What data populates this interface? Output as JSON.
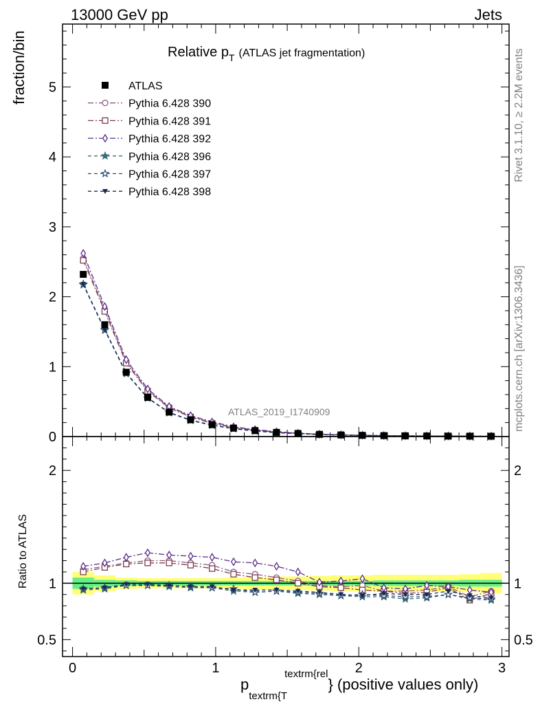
{
  "header": {
    "left": "13000 GeV pp",
    "right": "Jets"
  },
  "side_text": {
    "version": "Rivet 3.1.10, ≥ 2.2M events",
    "source": "mcplots.cern.ch [arXiv:1306.3436]"
  },
  "chart_data": [
    {
      "type": "line",
      "panel": "main",
      "title_main": "Relative p",
      "title_sub": "T",
      "title_rest": "(ATLAS jet fragmentation)",
      "watermark": "ATLAS_2019_I1740909",
      "ylabel": "fraction/bin",
      "xlim": [
        -0.07,
        3.05
      ],
      "ylim": [
        0,
        5.9
      ],
      "xticks": [
        "0",
        "1",
        "2",
        "3"
      ],
      "yticks": [
        "0",
        "1",
        "2",
        "3",
        "4",
        "5"
      ],
      "x": [
        0.075,
        0.225,
        0.375,
        0.525,
        0.675,
        0.825,
        0.975,
        1.125,
        1.275,
        1.425,
        1.575,
        1.725,
        1.875,
        2.025,
        2.175,
        2.325,
        2.475,
        2.625,
        2.775,
        2.925
      ],
      "series": [
        {
          "name": "ATLAS",
          "color": "#000000",
          "marker": "filled-square",
          "dash": "none",
          "values": [
            2.32,
            1.6,
            0.92,
            0.56,
            0.35,
            0.24,
            0.17,
            0.12,
            0.085,
            0.06,
            0.045,
            0.032,
            0.024,
            0.018,
            0.014,
            0.011,
            0.009,
            0.007,
            0.006,
            0.005
          ]
        },
        {
          "name": "Pythia 6.428 390",
          "color": "#8a5a86",
          "marker": "open-circle",
          "dash": "8,3,2,3",
          "values": [
            2.55,
            1.82,
            1.07,
            0.66,
            0.42,
            0.29,
            0.2,
            0.13,
            0.095,
            0.065,
            0.047,
            0.032,
            0.023,
            0.017,
            0.013,
            0.01,
            0.009,
            0.007,
            0.005,
            0.0045
          ]
        },
        {
          "name": "Pythia 6.428 391",
          "color": "#7a3a4a",
          "marker": "open-square",
          "dash": "8,3,2,3",
          "values": [
            2.52,
            1.79,
            1.05,
            0.65,
            0.41,
            0.28,
            0.19,
            0.127,
            0.09,
            0.062,
            0.045,
            0.031,
            0.023,
            0.017,
            0.013,
            0.01,
            0.008,
            0.007,
            0.005,
            0.0045
          ]
        },
        {
          "name": "Pythia 6.428 392",
          "color": "#5a2a8a",
          "marker": "open-diamond",
          "dash": "8,3,2,3",
          "values": [
            2.62,
            1.86,
            1.1,
            0.68,
            0.43,
            0.3,
            0.21,
            0.14,
            0.1,
            0.07,
            0.049,
            0.033,
            0.024,
            0.019,
            0.013,
            0.01,
            0.009,
            0.007,
            0.005,
            0.0045
          ]
        },
        {
          "name": "Pythia 6.428 396",
          "color": "#3a6a7a",
          "marker": "filled-star",
          "dash": "5,4",
          "values": [
            2.17,
            1.52,
            0.9,
            0.55,
            0.34,
            0.23,
            0.16,
            0.112,
            0.078,
            0.056,
            0.041,
            0.029,
            0.021,
            0.016,
            0.012,
            0.009,
            0.008,
            0.006,
            0.005,
            0.0043
          ]
        },
        {
          "name": "Pythia 6.428 397",
          "color": "#2a4a6a",
          "marker": "open-star",
          "dash": "5,4",
          "values": [
            2.18,
            1.53,
            0.91,
            0.55,
            0.345,
            0.235,
            0.165,
            0.113,
            0.08,
            0.057,
            0.042,
            0.03,
            0.022,
            0.016,
            0.012,
            0.01,
            0.008,
            0.0065,
            0.0052,
            0.0043
          ]
        },
        {
          "name": "Pythia 6.428 398",
          "color": "#1a2a55",
          "marker": "filled-triangle-down",
          "dash": "5,4",
          "values": [
            2.18,
            1.53,
            0.91,
            0.555,
            0.345,
            0.235,
            0.165,
            0.114,
            0.08,
            0.057,
            0.042,
            0.03,
            0.022,
            0.016,
            0.012,
            0.01,
            0.008,
            0.0065,
            0.0052,
            0.0043
          ]
        }
      ]
    },
    {
      "type": "line",
      "panel": "ratio",
      "ylabel": "Ratio to ATLAS",
      "xlabel_main": "p",
      "xlabel_sub": "textrm{T",
      "xlabel_sup": "textrm{rel",
      "xlabel_rest": "} (positive values only)",
      "xlim": [
        -0.07,
        3.05
      ],
      "ylim": [
        0.35,
        2.3
      ],
      "xticks": [
        "0",
        "1",
        "2",
        "3"
      ],
      "yticks": [
        "0.5",
        "1",
        "2"
      ],
      "reference": 1.0,
      "bands": {
        "inner_color": "#66ee88",
        "outer_color": "#ffff77",
        "edges": [
          0.0,
          0.15,
          0.3,
          0.45,
          0.6,
          0.75,
          0.9,
          1.05,
          1.2,
          1.35,
          1.5,
          1.65,
          1.8,
          1.95,
          2.1,
          2.25,
          2.4,
          2.55,
          2.7,
          2.85,
          3.0
        ],
        "inner_halfwidth": [
          0.05,
          0.03,
          0.025,
          0.02,
          0.02,
          0.02,
          0.02,
          0.02,
          0.02,
          0.02,
          0.02,
          0.02,
          0.02,
          0.02,
          0.025,
          0.025,
          0.025,
          0.025,
          0.03,
          0.03
        ],
        "outer_halfwidth": [
          0.1,
          0.07,
          0.05,
          0.045,
          0.045,
          0.045,
          0.045,
          0.05,
          0.055,
          0.06,
          0.06,
          0.065,
          0.07,
          0.07,
          0.075,
          0.075,
          0.075,
          0.075,
          0.08,
          0.09
        ]
      },
      "series": [
        {
          "name": "Pythia 6.428 390",
          "values": [
            1.12,
            1.15,
            1.18,
            1.2,
            1.2,
            1.18,
            1.16,
            1.1,
            1.08,
            1.05,
            1.02,
            0.98,
            0.97,
            0.98,
            0.93,
            0.93,
            0.94,
            0.97,
            0.88,
            0.93
          ]
        },
        {
          "name": "Pythia 6.428 391",
          "values": [
            1.1,
            1.14,
            1.17,
            1.18,
            1.18,
            1.16,
            1.13,
            1.08,
            1.05,
            1.03,
            1.0,
            0.97,
            0.96,
            0.94,
            0.93,
            0.91,
            0.92,
            0.96,
            0.85,
            0.91
          ]
        },
        {
          "name": "Pythia 6.428 392",
          "values": [
            1.15,
            1.18,
            1.23,
            1.27,
            1.25,
            1.24,
            1.23,
            1.19,
            1.18,
            1.15,
            1.1,
            1.01,
            1.02,
            1.04,
            0.96,
            0.95,
            0.98,
            0.97,
            0.94,
            0.92
          ]
        },
        {
          "name": "Pythia 6.428 396",
          "values": [
            0.94,
            0.95,
            0.98,
            0.98,
            0.97,
            0.96,
            0.96,
            0.93,
            0.92,
            0.93,
            0.91,
            0.9,
            0.89,
            0.88,
            0.88,
            0.86,
            0.87,
            0.9,
            0.86,
            0.85
          ]
        },
        {
          "name": "Pythia 6.428 397",
          "values": [
            0.95,
            0.96,
            0.98,
            0.98,
            0.98,
            0.97,
            0.96,
            0.95,
            0.92,
            0.93,
            0.92,
            0.91,
            0.89,
            0.9,
            0.89,
            0.88,
            0.88,
            0.9,
            0.87,
            0.86
          ]
        },
        {
          "name": "Pythia 6.428 398",
          "values": [
            0.95,
            0.96,
            0.99,
            0.99,
            0.98,
            0.97,
            0.97,
            0.94,
            0.94,
            0.94,
            0.93,
            0.92,
            0.9,
            0.89,
            0.91,
            0.9,
            0.9,
            0.93,
            0.89,
            0.87
          ]
        }
      ]
    }
  ]
}
